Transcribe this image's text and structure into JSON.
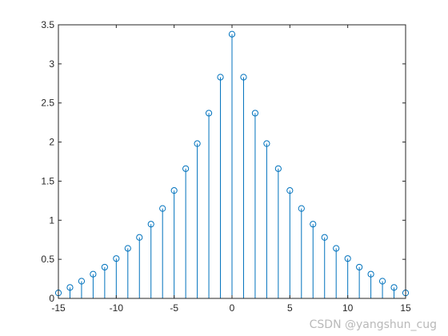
{
  "chart_data": {
    "type": "stem",
    "x": [
      -15,
      -14,
      -13,
      -12,
      -11,
      -10,
      -9,
      -8,
      -7,
      -6,
      -5,
      -4,
      -3,
      -2,
      -1,
      0,
      1,
      2,
      3,
      4,
      5,
      6,
      7,
      8,
      9,
      10,
      11,
      12,
      13,
      14,
      15
    ],
    "values": [
      0.07,
      0.14,
      0.22,
      0.31,
      0.4,
      0.51,
      0.64,
      0.78,
      0.95,
      1.15,
      1.38,
      1.66,
      1.98,
      2.37,
      2.83,
      3.38,
      2.83,
      2.37,
      1.98,
      1.66,
      1.38,
      1.15,
      0.95,
      0.78,
      0.64,
      0.51,
      0.4,
      0.31,
      0.22,
      0.14,
      0.07
    ],
    "xlim": [
      -15,
      15
    ],
    "ylim": [
      0,
      3.5
    ],
    "xticks": [
      -15,
      -10,
      -5,
      0,
      5,
      10,
      15
    ],
    "yticks": [
      0,
      0.5,
      1,
      1.5,
      2,
      2.5,
      3,
      3.5
    ],
    "xtick_labels": [
      "-15",
      "-10",
      "-5",
      "0",
      "5",
      "10",
      "15"
    ],
    "ytick_labels": [
      "0",
      "0.5",
      "1",
      "1.5",
      "2",
      "2.5",
      "3",
      "3.5"
    ],
    "grid": false,
    "title": "",
    "xlabel": "",
    "ylabel": "",
    "color": "#0072bd"
  },
  "watermark": "CSDN @yangshun_cug"
}
